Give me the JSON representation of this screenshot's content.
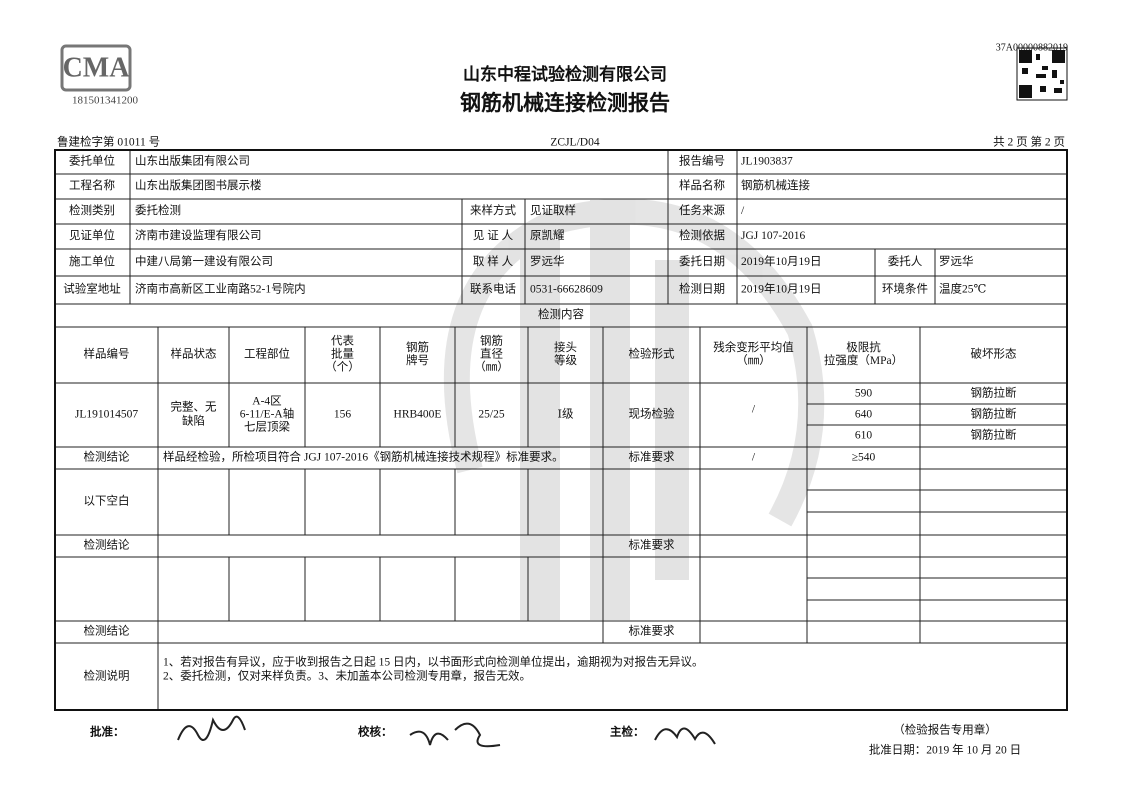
{
  "header": {
    "cma_logo": "CMA",
    "cma_number": "181501341200",
    "report_id": "37A00000882019",
    "company": "山东中程试验检测有限公司",
    "title": "钢筋机械连接检测报告",
    "code": "鲁建检字第 01011 号",
    "form": "ZCJL/D04",
    "page": "共 2 页 第 2 页"
  },
  "info": {
    "rows": [
      [
        "委托单位",
        "山东出版集团有限公司",
        "报告编号",
        "JL1903837"
      ],
      [
        "工程名称",
        "山东出版集团图书展示楼",
        "样品名称",
        "钢筋机械连接"
      ],
      [
        "检测类别",
        "委托检测",
        "来样方式",
        "见证取样",
        "任务来源",
        "/"
      ],
      [
        "见证单位",
        "济南市建设监理有限公司",
        "见 证 人",
        "原凯耀",
        "检测依据",
        "JGJ 107-2016"
      ],
      [
        "施工单位",
        "中建八局第一建设有限公司",
        "取 样 人",
        "罗远华",
        "委托日期",
        "2019年10月19日",
        "委托人",
        "罗远华"
      ],
      [
        "试验室地址",
        "济南市高新区工业南路52-1号院内",
        "联系电话",
        "0531-66628609",
        "检测日期",
        "2019年10月19日",
        "环境条件",
        "温度25℃"
      ]
    ]
  },
  "content_title": "检测内容",
  "table": {
    "headers": [
      [
        "样品编号"
      ],
      [
        "样品状态"
      ],
      [
        "工程部位"
      ],
      [
        "代表",
        "批量",
        "（个）"
      ],
      [
        "钢筋",
        "牌号"
      ],
      [
        "钢筋",
        "直径",
        "（㎜）"
      ],
      [
        "接头",
        "等级"
      ],
      [
        "检验形式"
      ],
      [
        "残余变形平均值",
        "（㎜）"
      ],
      [
        "极限抗",
        "拉强度（MPa）"
      ],
      [
        "破坏形态"
      ]
    ],
    "sample": {
      "id": "JL191014507",
      "state": [
        "完整、无",
        "缺陷"
      ],
      "location": [
        "A-4区",
        "6-11/E-A轴",
        "七层顶梁"
      ],
      "batch": 156,
      "grade": "HRB400E",
      "diameter": "25/25",
      "joint_class": "Ⅰ级",
      "test_form": "现场检验",
      "residual": "/",
      "strength": [
        590,
        640,
        610
      ],
      "failure": [
        "钢筋拉断",
        "钢筋拉断",
        "钢筋拉断"
      ]
    },
    "conclusion": {
      "label": "检测结论",
      "text": "样品经检验，所检项目符合 JGJ 107-2016《钢筋机械连接技术规程》标准要求。",
      "standard_label": "标准要求",
      "residual_req": "/",
      "strength_req": "≥540"
    },
    "blank_label": "以下空白",
    "conclusion2": {
      "label": "检测结论",
      "standard_label": "标准要求"
    },
    "conclusion3": {
      "label": "检测结论",
      "standard_label": "标准要求"
    },
    "notes": {
      "label": "检测说明",
      "lines": [
        "1、若对报告有异议，应于收到报告之日起 15 日内，以书面形式向检测单位提出，逾期视为对报告无异议。",
        "2、委托检测，仅对来样负责。3、未加盖本公司检测专用章，报告无效。"
      ]
    }
  },
  "footer": {
    "approve": "批准：",
    "check": "校核：",
    "inspect": "主检：",
    "seal": "（检验报告专用章）",
    "date": "批准日期：2019 年 10 月 20 日"
  }
}
